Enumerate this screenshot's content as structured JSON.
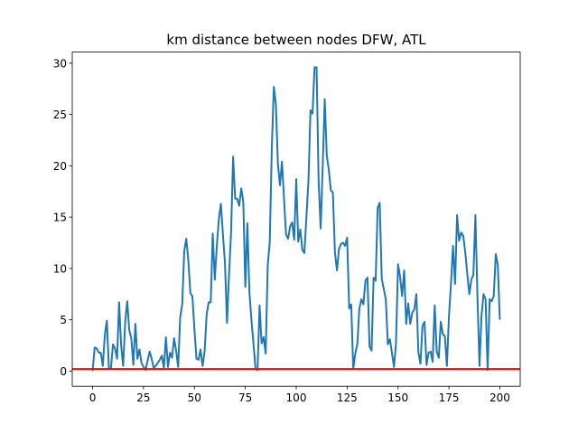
{
  "chart_data": {
    "type": "line",
    "title": "km distance between nodes DFW, ATL",
    "x": [
      0,
      1,
      2,
      3,
      4,
      5,
      6,
      7,
      8,
      9,
      10,
      11,
      12,
      13,
      14,
      15,
      16,
      17,
      18,
      19,
      20,
      21,
      22,
      23,
      24,
      25,
      26,
      27,
      28,
      29,
      30,
      31,
      32,
      33,
      34,
      35,
      36,
      37,
      38,
      39,
      40,
      41,
      42,
      43,
      44,
      45,
      46,
      47,
      48,
      49,
      50,
      51,
      52,
      53,
      54,
      55,
      56,
      57,
      58,
      59,
      60,
      61,
      62,
      63,
      64,
      65,
      66,
      67,
      68,
      69,
      70,
      71,
      72,
      73,
      74,
      75,
      76,
      77,
      78,
      79,
      80,
      81,
      82,
      83,
      84,
      85,
      86,
      87,
      88,
      89,
      90,
      91,
      92,
      93,
      94,
      95,
      96,
      97,
      98,
      99,
      100,
      101,
      102,
      103,
      104,
      105,
      106,
      107,
      108,
      109,
      110,
      111,
      112,
      113,
      114,
      115,
      116,
      117,
      118,
      119,
      120,
      121,
      122,
      123,
      124,
      125,
      126,
      127,
      128,
      129,
      130,
      131,
      132,
      133,
      134,
      135,
      136,
      137,
      138,
      139,
      140,
      141,
      142,
      143,
      144,
      145,
      146,
      147,
      148,
      149,
      150,
      151,
      152,
      153,
      154,
      155,
      156,
      157,
      158,
      159,
      160,
      161,
      162,
      163,
      164,
      165,
      166,
      167,
      168,
      169,
      170,
      171,
      172,
      173,
      174,
      175,
      176,
      177,
      178,
      179,
      180,
      181,
      182,
      183,
      184,
      185,
      186,
      187,
      188,
      189,
      190,
      191,
      192,
      193,
      194,
      195,
      196,
      197,
      198,
      199,
      200
    ],
    "series": [
      {
        "color": "#1f77b4",
        "values": [
          0,
          2.3,
          2.2,
          1.8,
          1.8,
          0.5,
          3.5,
          4.9,
          0.2,
          0.3,
          2.6,
          2.2,
          1.2,
          6.7,
          2.5,
          0.5,
          4.8,
          6.8,
          4,
          3.2,
          0.6,
          4.6,
          1.2,
          2.1,
          0.8,
          0.4,
          0.1,
          1,
          1.9,
          1.2,
          0.3,
          0.5,
          0.8,
          1.1,
          1.5,
          0.3,
          3.3,
          0.4,
          1.8,
          1.3,
          3.2,
          2,
          0.4,
          5.2,
          6.5,
          11.7,
          12.9,
          10.8,
          7.6,
          7.3,
          4.1,
          1.2,
          1.1,
          2.1,
          0.5,
          1.9,
          5.5,
          6.7,
          6.7,
          13.4,
          8.9,
          12.2,
          14.8,
          16.3,
          13.3,
          10.5,
          4.7,
          9.4,
          13.5,
          20.9,
          16.8,
          16.8,
          16.1,
          17.8,
          16.5,
          8.2,
          14.4,
          7.7,
          5,
          2.7,
          0.2,
          0.1,
          6.4,
          2.7,
          3.3,
          1.7,
          10.3,
          12.6,
          21.7,
          27.7,
          26,
          20.2,
          18.1,
          20.4,
          16.8,
          13.3,
          12.9,
          14.1,
          14.5,
          12.8,
          18.7,
          12.6,
          13.8,
          11.8,
          11.5,
          15,
          18.5,
          25.4,
          25.1,
          29.6,
          29.6,
          18.5,
          13.9,
          19.9,
          26.5,
          21,
          19.6,
          17.6,
          17.4,
          11.6,
          9.8,
          11.9,
          12.4,
          12.5,
          12.2,
          13,
          6.1,
          6.5,
          0.2,
          1.7,
          2.6,
          6.1,
          7,
          6.5,
          8.8,
          9.1,
          2.4,
          2,
          9.1,
          8.8,
          15.9,
          16.4,
          9,
          8,
          7,
          2.6,
          3.1,
          1.8,
          0.4,
          2.7,
          10.4,
          9.2,
          7.3,
          9.8,
          4.6,
          6.6,
          4.6,
          5.7,
          6,
          7.5,
          1.8,
          0.7,
          4.4,
          4.8,
          0.6,
          1.8,
          1.9,
          0.9,
          6.4,
          1.9,
          1.3,
          4.8,
          3.6,
          3.4,
          0.5,
          5.3,
          8.5,
          12.2,
          8.5,
          15.2,
          12.7,
          13.5,
          13.2,
          11.6,
          9.5,
          7.5,
          8.9,
          9.4,
          15.2,
          7.3,
          0.5,
          5.4,
          7.5,
          7,
          0.1,
          7,
          6.8,
          7.3,
          11.4,
          10.3,
          5
        ]
      }
    ],
    "hline": {
      "value": 0.2,
      "color": "#ff0000"
    },
    "xlim": [
      -10,
      210
    ],
    "xticks": [
      0,
      25,
      50,
      75,
      100,
      125,
      150,
      175,
      200
    ],
    "ylim": [
      -1.48,
      31.08
    ],
    "yticks": [
      0,
      5,
      10,
      15,
      20,
      25,
      30
    ]
  }
}
